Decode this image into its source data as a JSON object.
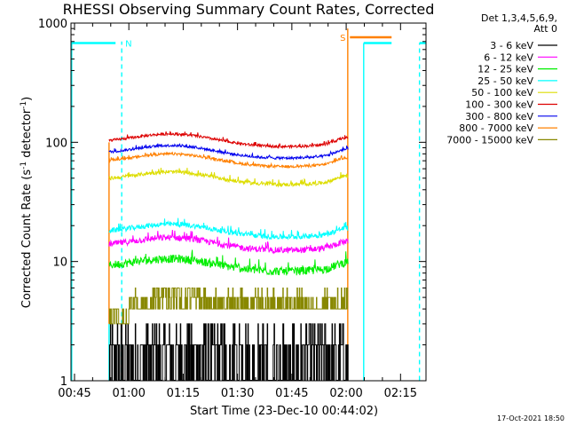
{
  "chart_data": {
    "type": "line",
    "title": "RHESSI Observing Summary Count Rates, Corrected",
    "xlabel": "Start Time (23-Dec-10 00:44:02)",
    "ylabel_main": "Corrected Count Rate (s",
    "ylabel_sup1": "-1",
    "ylabel_mid": " detector",
    "ylabel_sup2": "-1",
    "ylabel_end": ")",
    "x_unit": "minutes since 00:44:02",
    "xlim": [
      0,
      98
    ],
    "ylim": [
      1,
      1000
    ],
    "y_scale": "log",
    "x_ticks": [
      {
        "value": 0.97,
        "label": "00:45"
      },
      {
        "value": 15.97,
        "label": "01:00"
      },
      {
        "value": 30.97,
        "label": "01:15"
      },
      {
        "value": 45.97,
        "label": "01:30"
      },
      {
        "value": 60.97,
        "label": "01:45"
      },
      {
        "value": 75.97,
        "label": "02:00"
      },
      {
        "value": 90.97,
        "label": "02:15"
      }
    ],
    "y_ticks": [
      {
        "value": 1,
        "label": "1"
      },
      {
        "value": 10,
        "label": "10"
      },
      {
        "value": 100,
        "label": "100"
      },
      {
        "value": 1000,
        "label": "1000"
      }
    ],
    "legend": {
      "placement": "right",
      "header1": "Det 1,3,4,5,6,9,",
      "header2": "Att 0"
    },
    "observation_window": [
      10.5,
      76.5
    ],
    "series": [
      {
        "name": "3 - 6 keV",
        "color": "#000000",
        "base": 2.0,
        "noise": 0.5,
        "kind": "step"
      },
      {
        "name": "6 - 12 keV",
        "color": "#ff00ff",
        "base": 13.5,
        "noise": 0.06,
        "kind": "noisy"
      },
      {
        "name": "12 - 25 keV",
        "color": "#00ee00",
        "base": 9.0,
        "noise": 0.08,
        "kind": "noisy"
      },
      {
        "name": "25 - 50 keV",
        "color": "#00ffff",
        "base": 17.5,
        "noise": 0.05,
        "kind": "noisy"
      },
      {
        "name": "50 - 100 keV",
        "color": "#dddd00",
        "base": 48,
        "noise": 0.035,
        "kind": "noisy"
      },
      {
        "name": "100 - 300 keV",
        "color": "#dd0000",
        "base": 100,
        "noise": 0.025,
        "kind": "noisy"
      },
      {
        "name": "300 - 800 keV",
        "color": "#0000ee",
        "base": 80,
        "noise": 0.025,
        "kind": "noisy"
      },
      {
        "name": "800 - 7000 keV",
        "color": "#ff8000",
        "base": 68,
        "noise": 0.025,
        "kind": "noisy"
      },
      {
        "name": "7000 - 15000 keV",
        "color": "#888800",
        "base": 4.0,
        "noise": 0.25,
        "kind": "step"
      }
    ],
    "flags": [
      {
        "label": "N",
        "color": "#00ffff",
        "level": 680,
        "segments": [
          [
            0,
            12.3
          ],
          [
            96.2,
            98
          ]
        ],
        "label_at": 14.0
      },
      {
        "label": "S",
        "color": "#ff8000",
        "level": 760,
        "segments": [
          [
            77.0,
            88.5
          ]
        ],
        "label_at": 73.3
      },
      {
        "label": "",
        "color": "#00ffff",
        "level": 680,
        "segments": [
          [
            80.8,
            88.5
          ]
        ],
        "label_at": null
      }
    ],
    "vertical_markers": [
      {
        "x": 0.2,
        "color": "#00ffff",
        "style": "solid",
        "from": 1,
        "to": 680
      },
      {
        "x": 10.5,
        "color": "#00ffff",
        "style": "solid",
        "from": 1,
        "to": 3
      },
      {
        "x": 14.0,
        "color": "#00ffff",
        "style": "dashed",
        "from": 1,
        "to": 700
      },
      {
        "x": 10.5,
        "color": "#ff8000",
        "style": "solid",
        "from": 3,
        "to": 100
      },
      {
        "x": 76.4,
        "color": "#ff8000",
        "style": "solid",
        "from": 1,
        "to": 900
      },
      {
        "x": 80.8,
        "color": "#00ffff",
        "style": "solid",
        "from": 1,
        "to": 680
      },
      {
        "x": 96.2,
        "color": "#00ffff",
        "style": "dashed",
        "from": 1,
        "to": 680
      }
    ]
  },
  "footer_date": "17-Oct-2021 18:50"
}
